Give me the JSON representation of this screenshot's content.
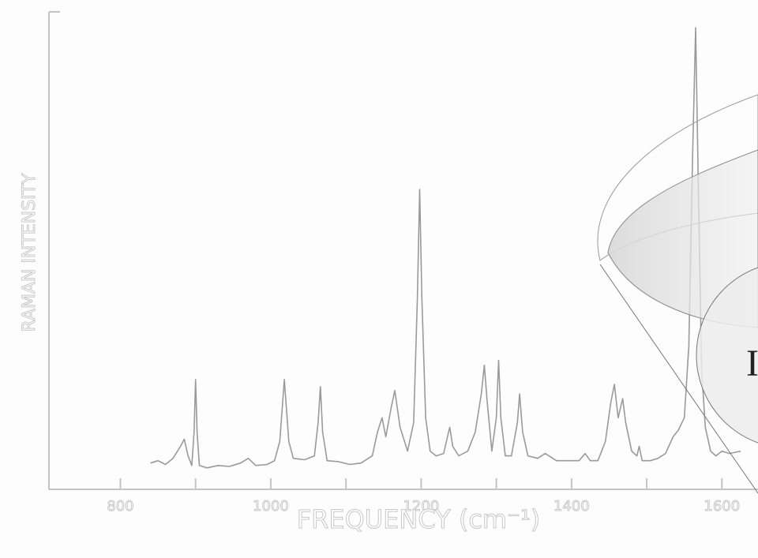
{
  "chart_data": {
    "type": "line",
    "xlabel": "FREQUENCY (cm⁻¹)",
    "ylabel": "RAMAN INTENSITY",
    "annotation": "I",
    "xlim": [
      705,
      1648
    ],
    "ylim": [
      0,
      100
    ],
    "xticks": [
      800,
      1000,
      1200,
      1400,
      1600
    ],
    "xminorticks": [
      900,
      1100,
      1300,
      1500
    ],
    "color": "#9a9a9a",
    "x": [
      840,
      850,
      860,
      870,
      880,
      885,
      890,
      895,
      898,
      900,
      902,
      905,
      915,
      930,
      945,
      960,
      970,
      980,
      995,
      1005,
      1012,
      1018,
      1024,
      1030,
      1045,
      1058,
      1063,
      1066,
      1069,
      1075,
      1090,
      1105,
      1120,
      1135,
      1142,
      1148,
      1153,
      1160,
      1165,
      1172,
      1182,
      1190,
      1195,
      1198,
      1201,
      1206,
      1212,
      1220,
      1230,
      1235,
      1238,
      1242,
      1250,
      1262,
      1272,
      1280,
      1284,
      1288,
      1294,
      1300,
      1303,
      1306,
      1312,
      1320,
      1328,
      1331,
      1335,
      1342,
      1355,
      1365,
      1380,
      1395,
      1410,
      1418,
      1425,
      1435,
      1445,
      1452,
      1457,
      1462,
      1468,
      1472,
      1480,
      1487,
      1490,
      1494,
      1505,
      1515,
      1525,
      1535,
      1542,
      1550,
      1556,
      1561,
      1565,
      1569,
      1573,
      1578,
      1585,
      1592,
      1600,
      1610,
      1625
    ],
    "values": [
      5.5,
      6,
      5.2,
      6.5,
      9,
      10.5,
      7,
      5,
      12,
      23,
      12,
      5,
      4.5,
      5,
      4.8,
      5.5,
      6.5,
      5,
      5.2,
      6,
      10,
      23,
      10,
      6.5,
      6.2,
      7,
      14,
      21.5,
      12,
      6,
      5.8,
      5.2,
      5.5,
      7,
      12,
      15,
      11,
      17,
      20.7,
      13,
      8,
      14,
      40,
      62.8,
      40,
      15,
      8,
      7,
      7.5,
      11,
      13,
      9,
      7,
      8,
      12,
      20,
      26,
      18,
      8,
      15,
      27,
      15,
      7,
      7,
      14,
      20,
      12,
      7,
      6.5,
      7.5,
      6,
      6,
      6,
      7.5,
      6,
      6,
      10,
      18,
      22,
      15,
      19,
      14,
      8,
      7,
      9,
      6,
      6,
      6.5,
      7.5,
      11,
      12.4,
      15,
      30,
      70,
      96.7,
      60,
      25,
      13,
      8,
      7,
      8,
      7.5,
      8
    ]
  }
}
